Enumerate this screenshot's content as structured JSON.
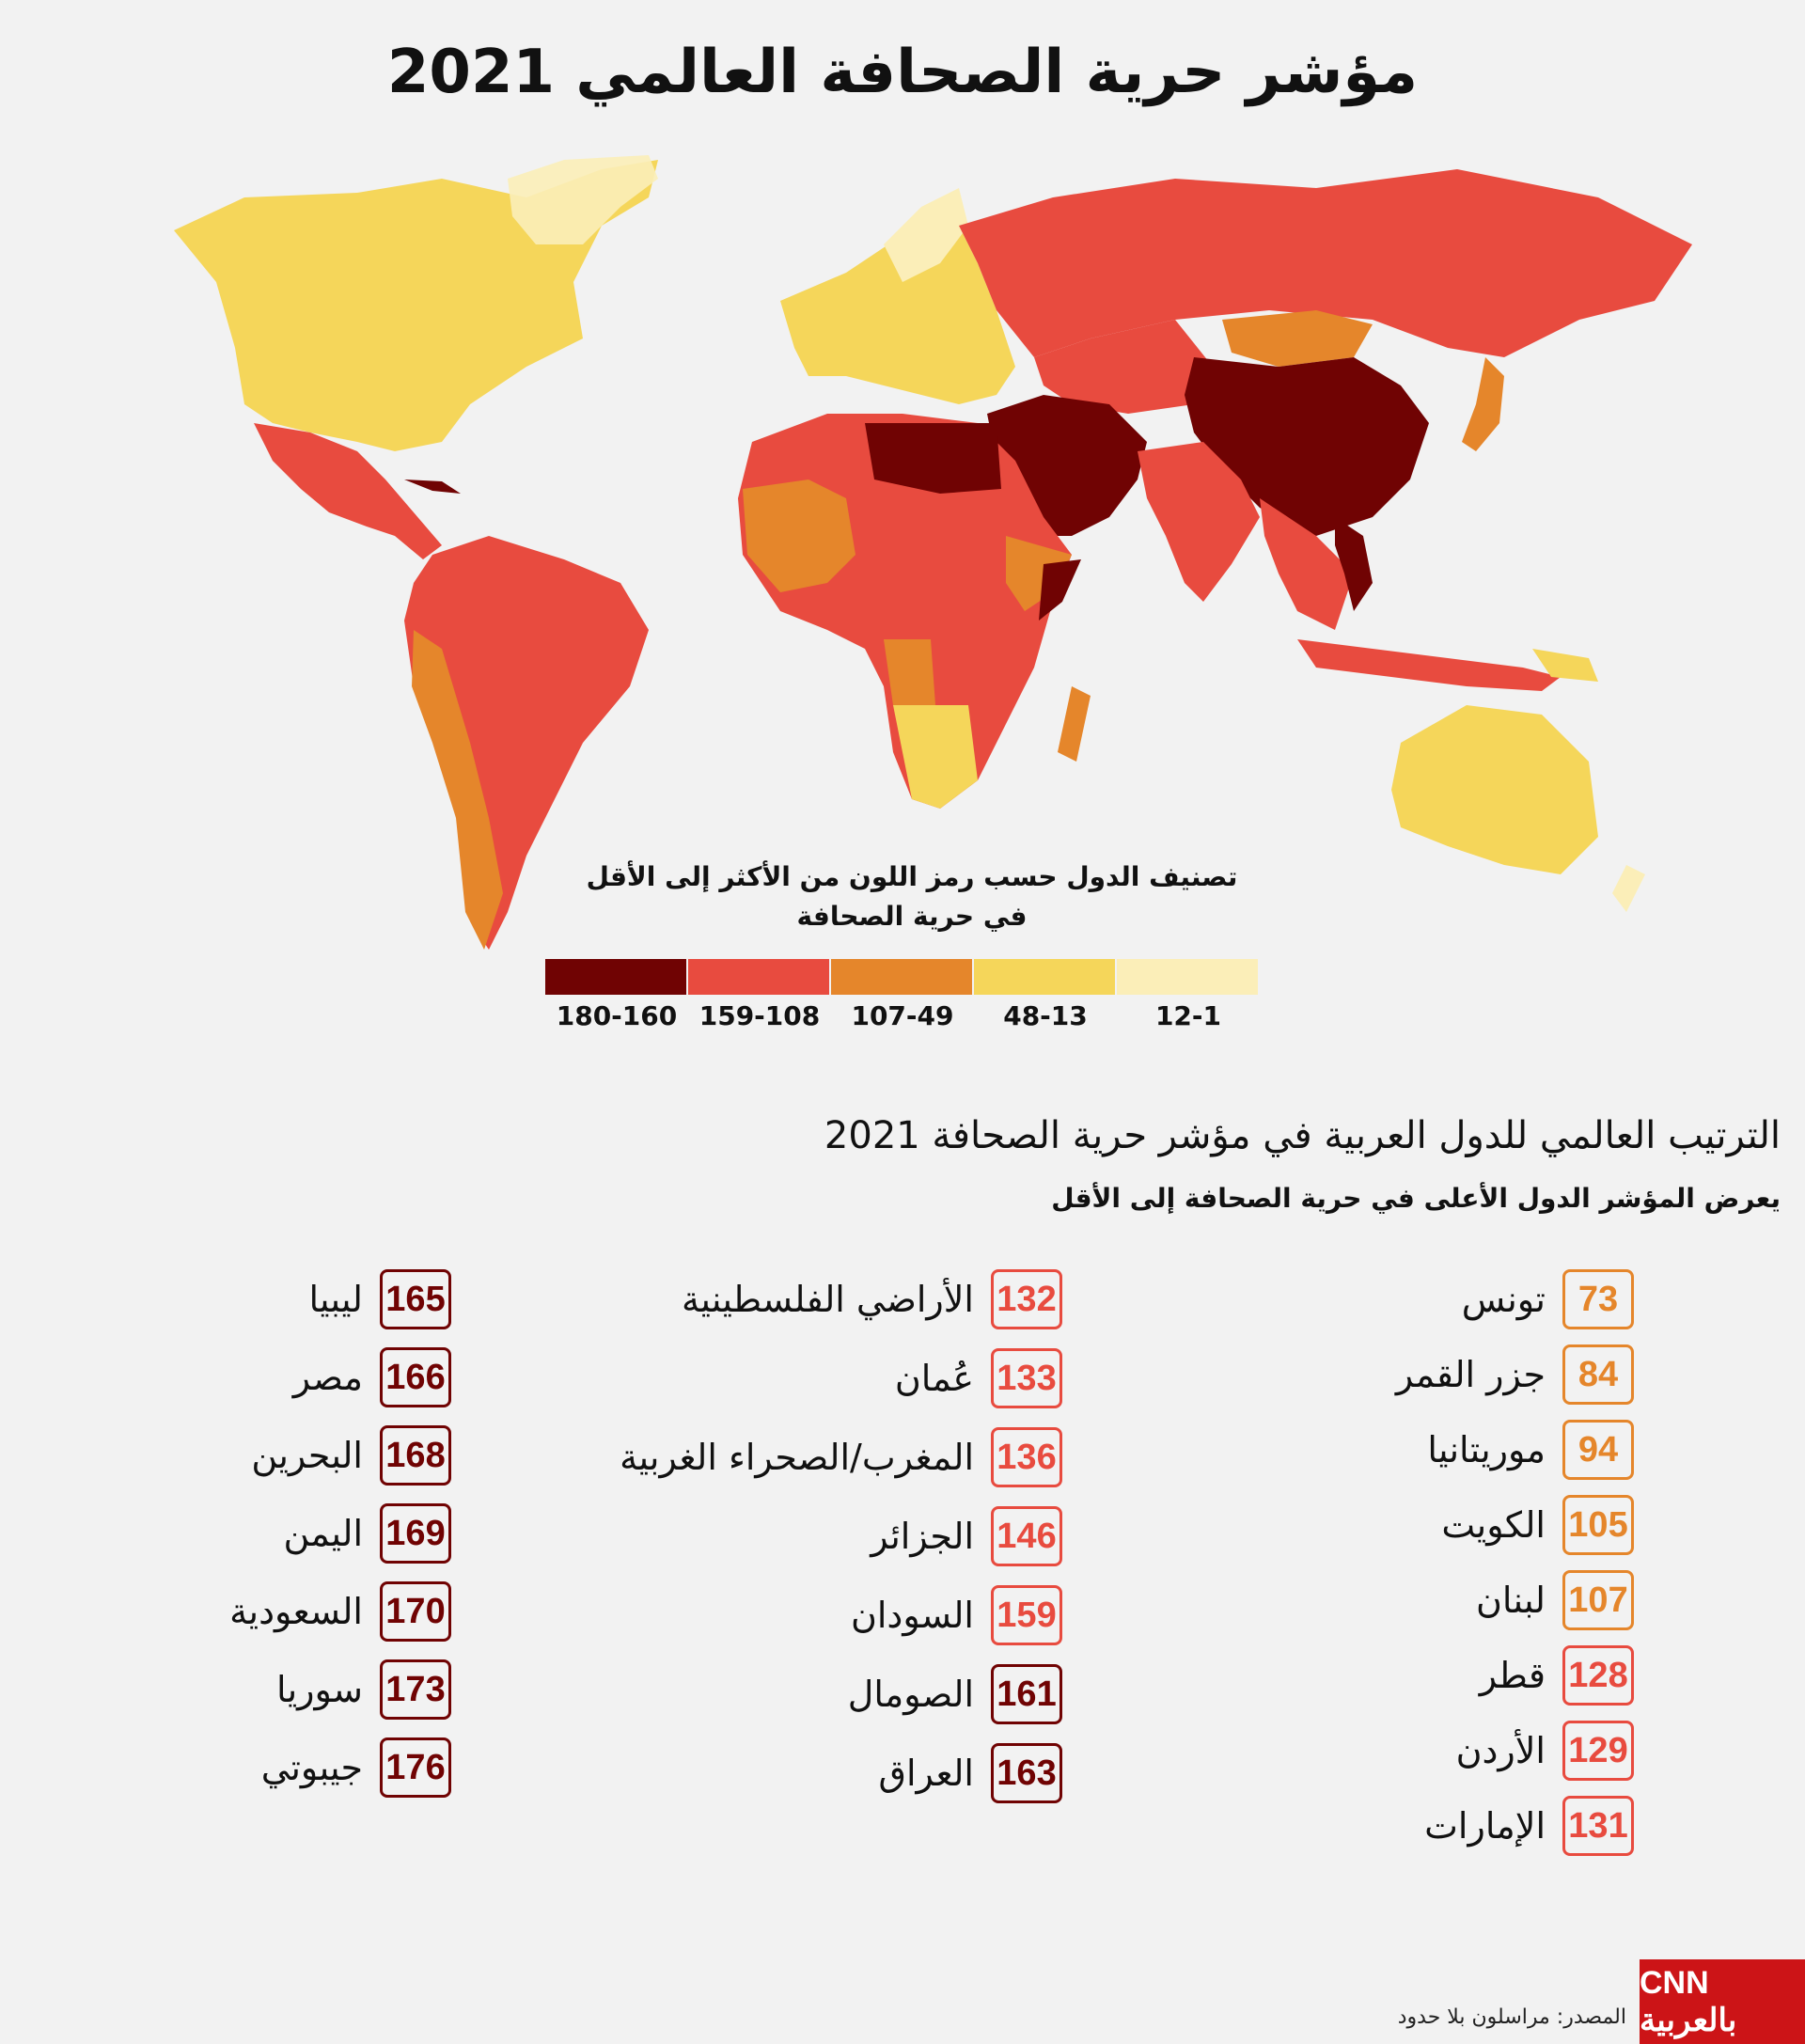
{
  "title": "مؤشر حرية الصحافة العالمي 2021",
  "legend": {
    "title_line1": "تصنيف الدول حسب رمز  اللون من الأكثر إلى الأقل",
    "title_line2": "في حرية الصحافة",
    "classes": [
      {
        "label": "180-160",
        "color": "#700303"
      },
      {
        "label": "159-108",
        "color": "#e84b3f"
      },
      {
        "label": "107-49",
        "color": "#e5862b"
      },
      {
        "label": "48-13",
        "color": "#f5d65a"
      },
      {
        "label": "12-1",
        "color": "#fbeeb8"
      }
    ]
  },
  "section": {
    "title": "الترتيب العالمي للدول العربية في مؤشر حرية الصحافة 2021",
    "subtitle": "يعرض المؤشر الدول الأعلى في حرية الصحافة إلى الأقل"
  },
  "rankings": {
    "column1": [
      {
        "rank": "73",
        "country": "تونس",
        "color": "#e5862b"
      },
      {
        "rank": "84",
        "country": "جزر القمر",
        "color": "#e5862b"
      },
      {
        "rank": "94",
        "country": "موريتانيا",
        "color": "#e5862b"
      },
      {
        "rank": "105",
        "country": "الكويت",
        "color": "#e5862b"
      },
      {
        "rank": "107",
        "country": "لبنان",
        "color": "#e5862b"
      },
      {
        "rank": "128",
        "country": "قطر",
        "color": "#e84b3f"
      },
      {
        "rank": "129",
        "country": "الأردن",
        "color": "#e84b3f"
      },
      {
        "rank": "131",
        "country": "الإمارات",
        "color": "#e84b3f"
      }
    ],
    "column2": [
      {
        "rank": "132",
        "country": "الأراضي الفلسطينية",
        "color": "#e84b3f"
      },
      {
        "rank": "133",
        "country": "عُمان",
        "color": "#e84b3f"
      },
      {
        "rank": "136",
        "country": "المغرب/الصحراء الغربية",
        "color": "#e84b3f"
      },
      {
        "rank": "146",
        "country": "الجزائر",
        "color": "#e84b3f"
      },
      {
        "rank": "159",
        "country": "السودان",
        "color": "#e84b3f"
      },
      {
        "rank": "161",
        "country": "الصومال",
        "color": "#700303"
      },
      {
        "rank": "163",
        "country": "العراق",
        "color": "#700303"
      }
    ],
    "column3": [
      {
        "rank": "165",
        "country": "ليبيا",
        "color": "#700303"
      },
      {
        "rank": "166",
        "country": "مصر",
        "color": "#700303"
      },
      {
        "rank": "168",
        "country": "البحرين",
        "color": "#700303"
      },
      {
        "rank": "169",
        "country": "اليمن",
        "color": "#700303"
      },
      {
        "rank": "170",
        "country": "السعودية",
        "color": "#700303"
      },
      {
        "rank": "173",
        "country": "سوريا",
        "color": "#700303"
      },
      {
        "rank": "176",
        "country": "جيبوتي",
        "color": "#700303"
      }
    ]
  },
  "footer": {
    "source": "المصدر: مراسلون بلا حدود",
    "logo": "CNN بالعربية"
  }
}
